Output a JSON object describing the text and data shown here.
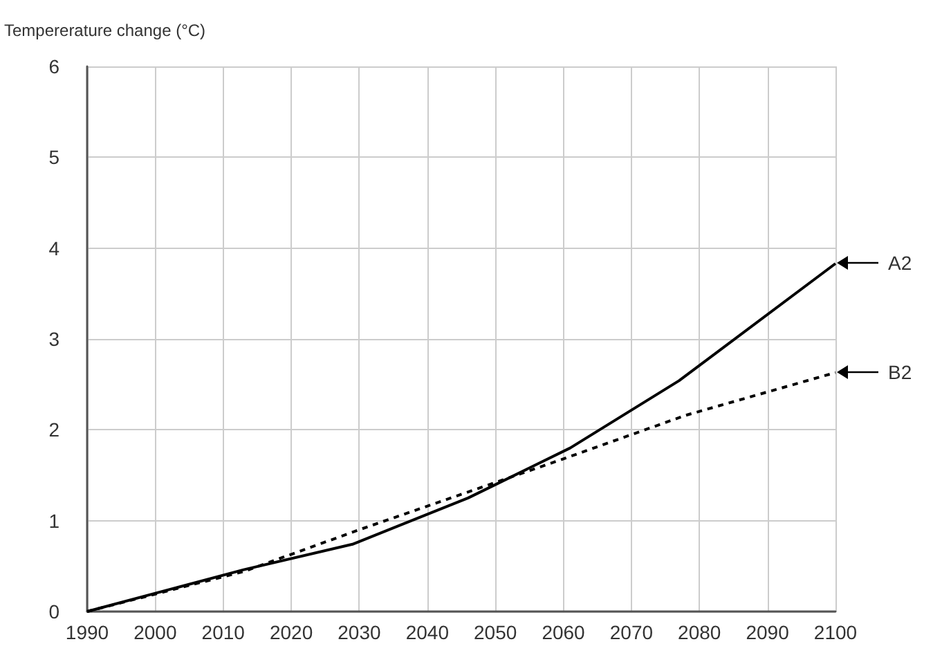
{
  "chart_data": {
    "type": "line",
    "ylabel": "Tempererature change (°C)",
    "xlim": [
      1990,
      2100
    ],
    "xticks": [
      1990,
      2000,
      2010,
      2020,
      2030,
      2040,
      2050,
      2060,
      2070,
      2080,
      2090,
      2100
    ],
    "ylim": [
      0,
      6
    ],
    "yticks": [
      0,
      1,
      2,
      3,
      4,
      5,
      6
    ],
    "grid": true,
    "marker": "none",
    "series": [
      {
        "color": "#000000",
        "line_style": "solid",
        "x": [
          1990,
          2013,
          2029,
          2046,
          2061,
          2077,
          2100
        ],
        "values": [
          0,
          0.46,
          0.74,
          1.25,
          1.8,
          2.54,
          3.83
        ]
      },
      {
        "color": "#000000",
        "line_style": "dashed",
        "x": [
          1990,
          2013,
          2030,
          2050,
          2060,
          2078,
          2100
        ],
        "values": [
          0,
          0.44,
          0.9,
          1.42,
          1.68,
          2.16,
          2.63
        ]
      }
    ],
    "annotations": [
      {
        "text": "A2",
        "x": 2100,
        "y": 3.83
      },
      {
        "text": "B2",
        "x": 2100,
        "y": 2.63
      }
    ]
  }
}
